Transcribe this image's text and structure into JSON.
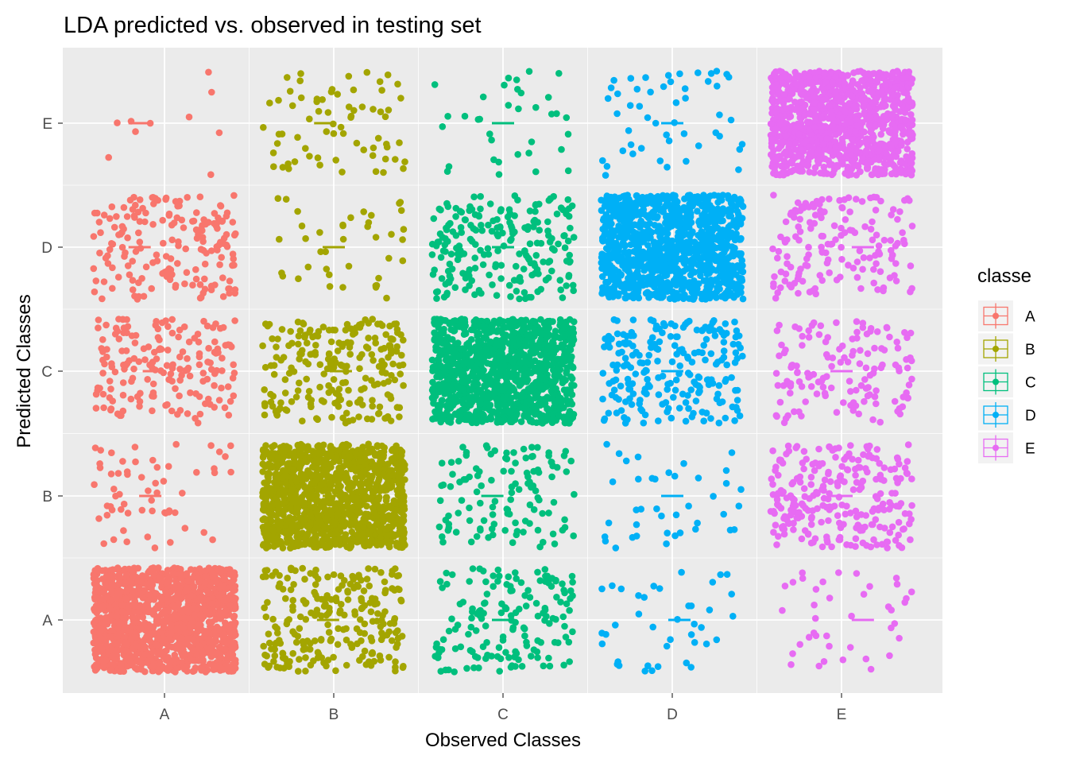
{
  "chart_data": {
    "type": "scatter",
    "subtype": "jitter plot with per-cell median crossbars",
    "title": "LDA predicted vs. observed in testing set",
    "xlabel": "Observed Classes",
    "ylabel": "Predicted Classes",
    "categories_x": [
      "A",
      "B",
      "C",
      "D",
      "E"
    ],
    "categories_y": [
      "A",
      "B",
      "C",
      "D",
      "E"
    ],
    "grid": true,
    "legend": {
      "title": "classe",
      "position": "right",
      "entries": [
        {
          "name": "A",
          "color": "#F8766D"
        },
        {
          "name": "B",
          "color": "#A3A500"
        },
        {
          "name": "C",
          "color": "#00BF7D"
        },
        {
          "name": "D",
          "color": "#00B0F6"
        },
        {
          "name": "E",
          "color": "#E76BF3"
        }
      ]
    },
    "panel_background": "#EBEBEB",
    "gridline_color": "#FFFFFF",
    "jitter_width_fraction": 0.42,
    "jitter_height_fraction": 0.42,
    "median_marker_offsets": [
      [
        0.0,
        -0.08,
        0.0,
        0.1,
        0.3
      ],
      [
        -0.2,
        0.0,
        -0.15,
        0.0,
        0.0
      ],
      [
        -0.15,
        0.1,
        0.0,
        0.0,
        0.0
      ],
      [
        -0.35,
        0.0,
        0.0,
        0.0,
        0.3
      ],
      [
        -0.35,
        -0.12,
        0.0,
        0.0,
        0.0
      ]
    ],
    "cells": [
      {
        "observed": "A",
        "predicted": "A",
        "approx_count": 1400
      },
      {
        "observed": "A",
        "predicted": "B",
        "approx_count": 60
      },
      {
        "observed": "A",
        "predicted": "C",
        "approx_count": 180
      },
      {
        "observed": "A",
        "predicted": "D",
        "approx_count": 180
      },
      {
        "observed": "A",
        "predicted": "E",
        "approx_count": 10
      },
      {
        "observed": "B",
        "predicted": "A",
        "approx_count": 240
      },
      {
        "observed": "B",
        "predicted": "B",
        "approx_count": 1200
      },
      {
        "observed": "B",
        "predicted": "C",
        "approx_count": 220
      },
      {
        "observed": "B",
        "predicted": "D",
        "approx_count": 40
      },
      {
        "observed": "B",
        "predicted": "E",
        "approx_count": 70
      },
      {
        "observed": "C",
        "predicted": "A",
        "approx_count": 160
      },
      {
        "observed": "C",
        "predicted": "B",
        "approx_count": 120
      },
      {
        "observed": "C",
        "predicted": "C",
        "approx_count": 1100
      },
      {
        "observed": "C",
        "predicted": "D",
        "approx_count": 220
      },
      {
        "observed": "C",
        "predicted": "E",
        "approx_count": 35
      },
      {
        "observed": "D",
        "predicted": "A",
        "approx_count": 40
      },
      {
        "observed": "D",
        "predicted": "B",
        "approx_count": 40
      },
      {
        "observed": "D",
        "predicted": "C",
        "approx_count": 220
      },
      {
        "observed": "D",
        "predicted": "D",
        "approx_count": 1100
      },
      {
        "observed": "D",
        "predicted": "E",
        "approx_count": 50
      },
      {
        "observed": "E",
        "predicted": "A",
        "approx_count": 40
      },
      {
        "observed": "E",
        "predicted": "B",
        "approx_count": 260
      },
      {
        "observed": "E",
        "predicted": "C",
        "approx_count": 140
      },
      {
        "observed": "E",
        "predicted": "D",
        "approx_count": 160
      },
      {
        "observed": "E",
        "predicted": "E",
        "approx_count": 1100
      }
    ]
  }
}
